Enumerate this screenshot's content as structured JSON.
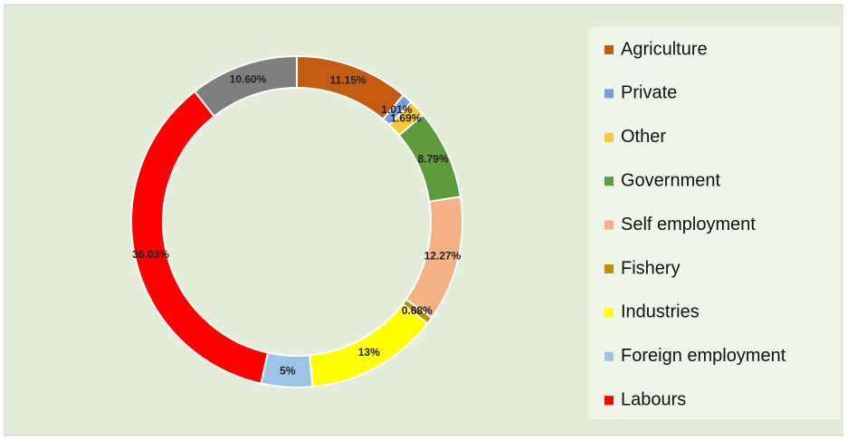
{
  "chart_data": {
    "type": "donut",
    "categories": [
      "Agriculture",
      "Private",
      "Other",
      "Government",
      "Self employment",
      "Fishery",
      "Industries",
      "Foreign employment",
      "Labours",
      null
    ],
    "values": [
      11.15,
      1.01,
      1.69,
      8.79,
      12.27,
      0.68,
      13,
      5,
      36.03,
      10.6
    ],
    "value_labels": [
      "11.15%",
      "1.01%",
      "1.69%",
      "8.79%",
      "12.27%",
      "0.68%",
      "13%",
      "5%",
      "36.03%",
      "10.60%"
    ],
    "colors": [
      "#c55a11",
      "#6fa0dc",
      "#f8c936",
      "#5e9b3b",
      "#f4b183",
      "#bf8f00",
      "#ffff00",
      "#9dc3e6",
      "#ff0000",
      "#7f7f7f"
    ],
    "legend": "right"
  }
}
